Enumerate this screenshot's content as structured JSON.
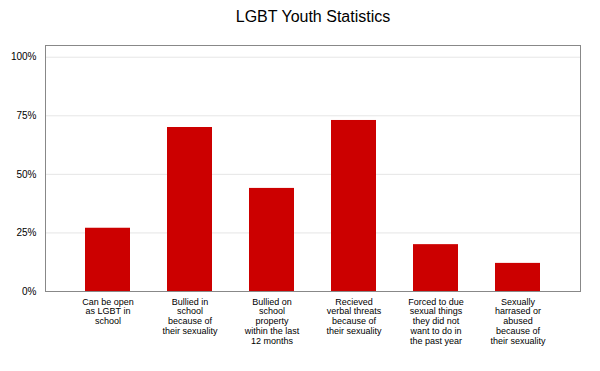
{
  "chart_data": {
    "type": "bar",
    "title": "LGBT Youth Statistics",
    "categories": [
      "Can be open\nas LGBT in\nschool",
      "Bullied in\nschool\nbecause of\ntheir sexuality",
      "Bullied on\nschool\nproperty\nwithin the last\n12 months",
      "Recieved\nverbal threats\nbecause of\ntheir sexuality",
      "Forced to due\nsexual things\nthey did not\nwant to do in\nthe past year",
      "Sexually\nharrased or\nabused\nbecause of\ntheir sexuality"
    ],
    "values": [
      0.27,
      0.7,
      0.44,
      0.73,
      0.2,
      0.12
    ],
    "color": "#CC0000",
    "ylim": [
      0,
      1.05
    ],
    "yticks": [
      {
        "value": 0,
        "label": "0%"
      },
      {
        "value": 0.25,
        "label": "25%"
      },
      {
        "value": 0.5,
        "label": "50%"
      },
      {
        "value": 0.75,
        "label": "75%"
      },
      {
        "value": 1.0,
        "label": "100%"
      }
    ],
    "grid": true
  }
}
